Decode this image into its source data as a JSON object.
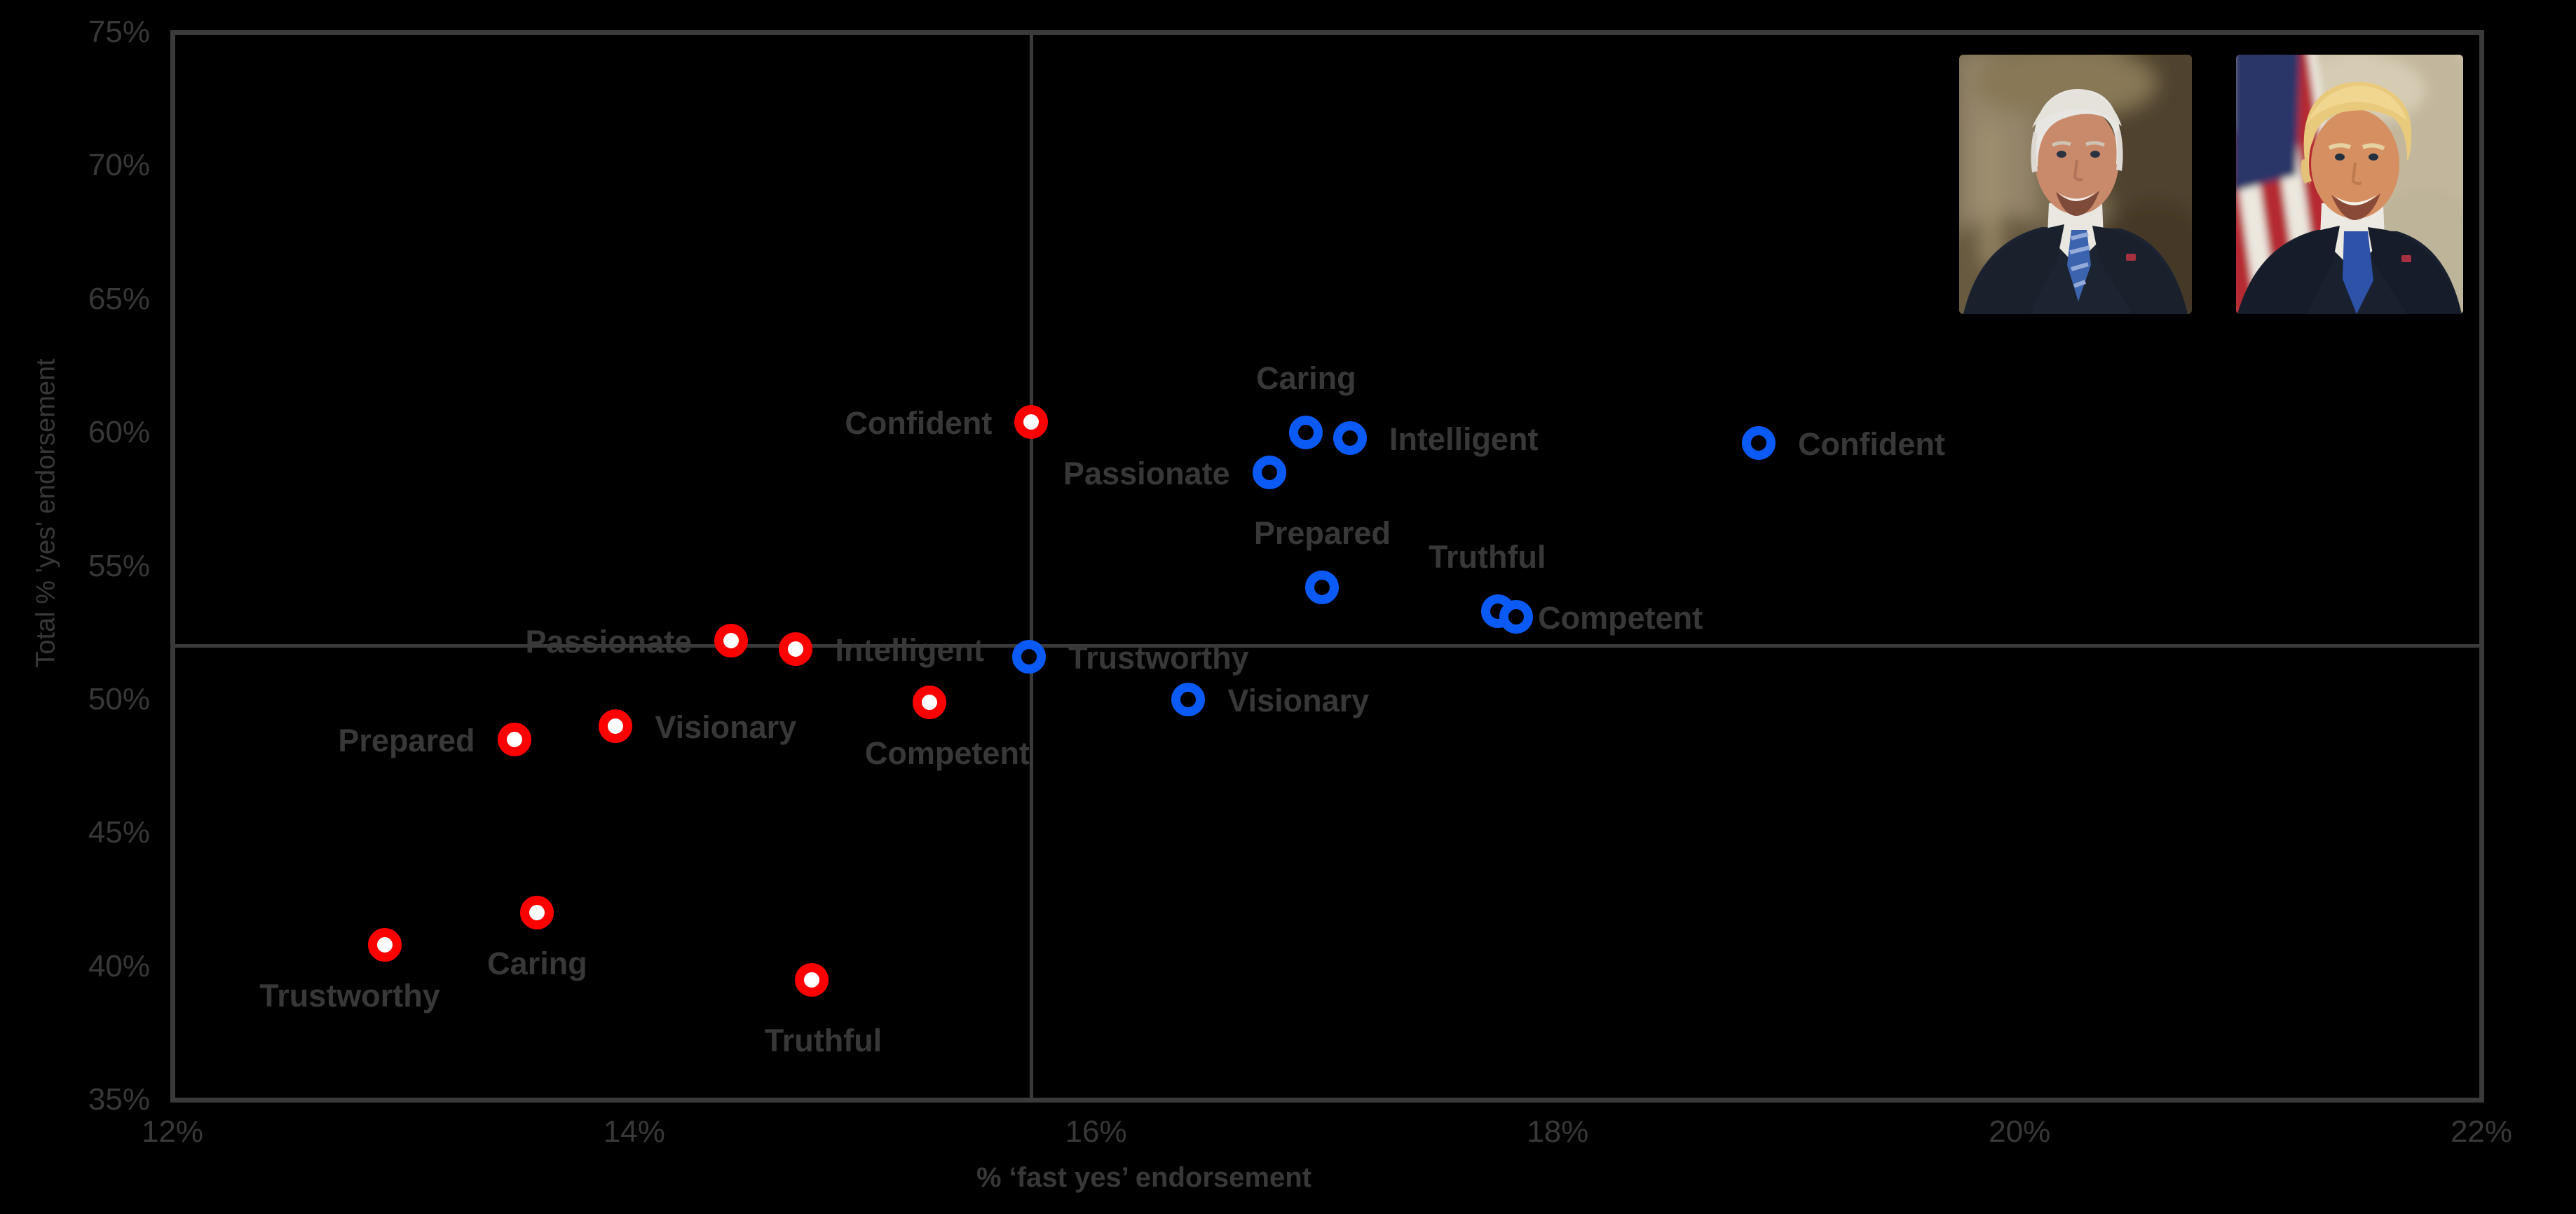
{
  "background_color": "#000000",
  "frame_color": "#3a3a3a",
  "text_color": "#383838",
  "chart_data": {
    "type": "scatter",
    "title": "",
    "xlabel": "% ‘fast yes’ endorsement",
    "ylabel": "Total % 'yes' endorsement",
    "xlim": [
      12,
      22
    ],
    "ylim": [
      35,
      75
    ],
    "x_ticks": [
      {
        "v": 12,
        "label": "12%"
      },
      {
        "v": 14,
        "label": "14%"
      },
      {
        "v": 16,
        "label": "16%"
      },
      {
        "v": 18,
        "label": "18%"
      },
      {
        "v": 20,
        "label": "20%"
      },
      {
        "v": 22,
        "label": "22%"
      }
    ],
    "y_ticks": [
      {
        "v": 35,
        "label": "35%"
      },
      {
        "v": 40,
        "label": "40%"
      },
      {
        "v": 45,
        "label": "45%"
      },
      {
        "v": 50,
        "label": "50%"
      },
      {
        "v": 55,
        "label": "55%"
      },
      {
        "v": 60,
        "label": "60%"
      },
      {
        "v": 65,
        "label": "65%"
      },
      {
        "v": 70,
        "label": "70%"
      },
      {
        "v": 75,
        "label": "75%"
      }
    ],
    "crosshair": {
      "x": 15.72,
      "y": 52.0
    },
    "legend_portraits": [
      {
        "name": "Joe Biden"
      },
      {
        "name": "Donald Trump"
      }
    ],
    "series": [
      {
        "name": "red",
        "color": "#fe0000",
        "marker_fill": "#ffffff",
        "points": [
          {
            "label": "Confident",
            "x": 15.72,
            "y": 60.4,
            "placement": "left"
          },
          {
            "label": "Passionate",
            "x": 14.42,
            "y": 52.2,
            "placement": "left"
          },
          {
            "label": "Intelligent",
            "x": 14.7,
            "y": 51.9,
            "placement": "right"
          },
          {
            "label": "Competent",
            "x": 15.28,
            "y": 49.9,
            "placement": "below",
            "dx": 25,
            "dy": 0
          },
          {
            "label": "Visionary",
            "x": 13.92,
            "y": 49.0,
            "placement": "right"
          },
          {
            "label": "Prepared",
            "x": 13.48,
            "y": 48.5,
            "placement": "left"
          },
          {
            "label": "Caring",
            "x": 13.58,
            "y": 42.0,
            "placement": "below",
            "dx": 0,
            "dy": 0
          },
          {
            "label": "Trustworthy",
            "x": 12.92,
            "y": 40.8,
            "placement": "below",
            "dx": -50,
            "dy": 0
          },
          {
            "label": "Truthful",
            "x": 14.77,
            "y": 39.5,
            "placement": "below",
            "dx": 16,
            "dy": 14
          }
        ]
      },
      {
        "name": "blue",
        "color": "#0b5af5",
        "marker_fill": "#000000",
        "points": [
          {
            "label": "Caring",
            "x": 16.91,
            "y": 60.0,
            "placement": "above",
            "dx": 0,
            "dy": 0
          },
          {
            "label": "Intelligent",
            "x": 17.1,
            "y": 59.8,
            "placement": "right"
          },
          {
            "label": "Passionate",
            "x": 16.75,
            "y": 58.5,
            "placement": "left"
          },
          {
            "label": "Confident",
            "x": 18.87,
            "y": 59.6,
            "placement": "right"
          },
          {
            "label": "Prepared",
            "x": 16.98,
            "y": 54.2,
            "placement": "above",
            "dx": 0,
            "dy": 0
          },
          {
            "label": "Truthful",
            "x": 17.74,
            "y": 53.3,
            "placement": "above",
            "dx": -15,
            "dy": 0
          },
          {
            "label": "Competent",
            "x": 17.82,
            "y": 53.1,
            "placement": "right",
            "dx": -25,
            "dy": 0
          },
          {
            "label": "Trustworthy",
            "x": 15.71,
            "y": 51.6,
            "placement": "right"
          },
          {
            "label": "Visionary",
            "x": 16.4,
            "y": 50.0,
            "placement": "right"
          }
        ]
      }
    ]
  }
}
